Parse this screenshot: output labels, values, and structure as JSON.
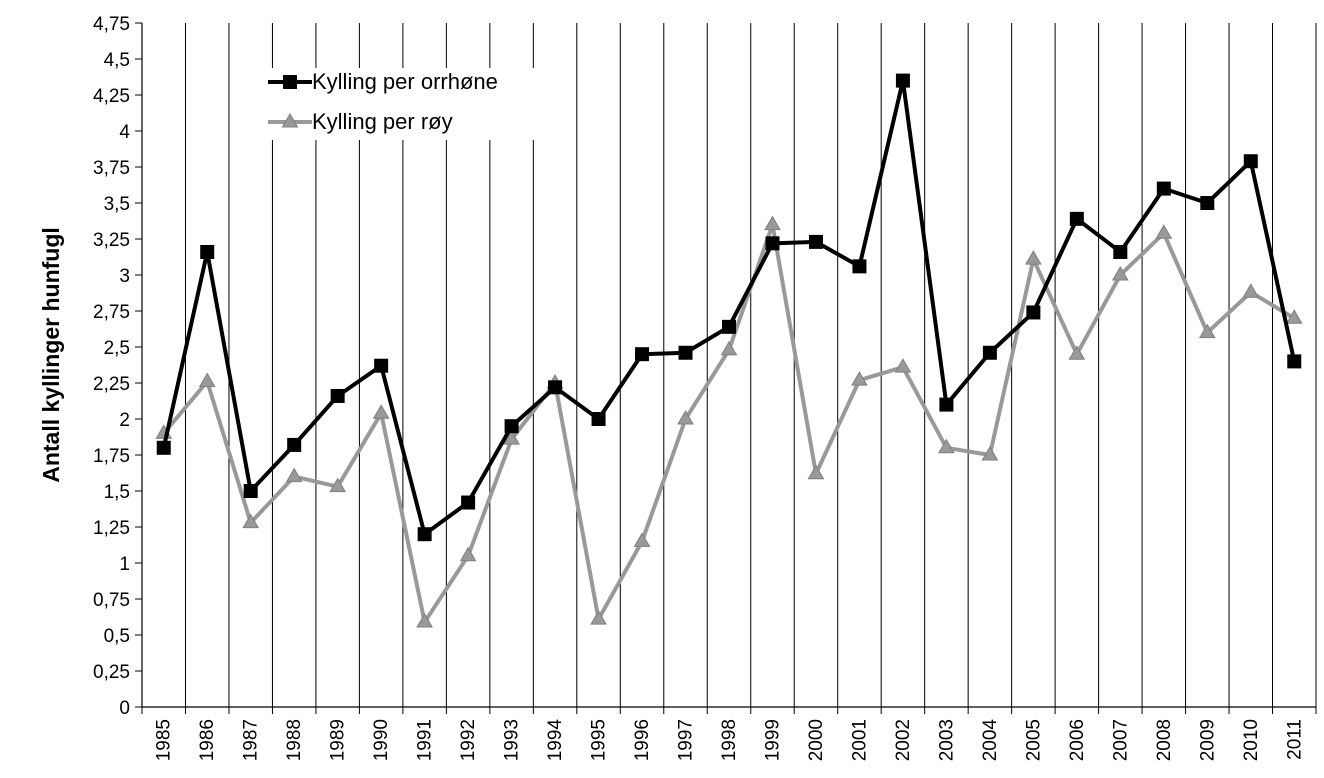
{
  "chart_data": {
    "type": "line",
    "title": "",
    "xlabel": "",
    "ylabel": "Antall kyllinger hunfugl",
    "ylim": [
      0,
      4.75
    ],
    "ytick_step": 0.25,
    "y_tick_labels": [
      "0",
      "0,25",
      "0,5",
      "0,75",
      "1",
      "1,25",
      "1,5",
      "1,75",
      "2",
      "2,25",
      "2,5",
      "2,75",
      "3",
      "3,25",
      "3,5",
      "3,75",
      "4",
      "4,25",
      "4,5",
      "4,75"
    ],
    "grid": "vertical",
    "legend_position": "top-left",
    "categories": [
      "1985",
      "1986",
      "1987",
      "1988",
      "1989",
      "1990",
      "1991",
      "1992",
      "1993",
      "1994",
      "1995",
      "1996",
      "1997",
      "1998",
      "1999",
      "2000",
      "2001",
      "2002",
      "2003",
      "2004",
      "2005",
      "2006",
      "2007",
      "2008",
      "2009",
      "2010",
      "2011"
    ],
    "series": [
      {
        "name": "Kylling per orrhøne",
        "color": "#000000",
        "marker": "square",
        "values": [
          1.8,
          3.16,
          1.5,
          1.82,
          2.16,
          2.37,
          1.2,
          1.42,
          1.95,
          2.22,
          2.0,
          2.45,
          2.46,
          2.64,
          3.22,
          3.23,
          3.06,
          4.35,
          2.1,
          2.46,
          2.74,
          3.39,
          3.16,
          3.6,
          3.5,
          3.79,
          2.4
        ]
      },
      {
        "name": "Kylling per røy",
        "color": "#999999",
        "marker": "triangle",
        "values": [
          1.9,
          2.26,
          1.28,
          1.6,
          1.53,
          2.04,
          0.59,
          1.05,
          1.86,
          2.25,
          0.61,
          1.15,
          2.0,
          2.48,
          3.35,
          1.62,
          2.27,
          2.36,
          1.8,
          1.75,
          3.11,
          2.45,
          3.0,
          3.29,
          2.6,
          2.88,
          2.7
        ]
      }
    ]
  }
}
